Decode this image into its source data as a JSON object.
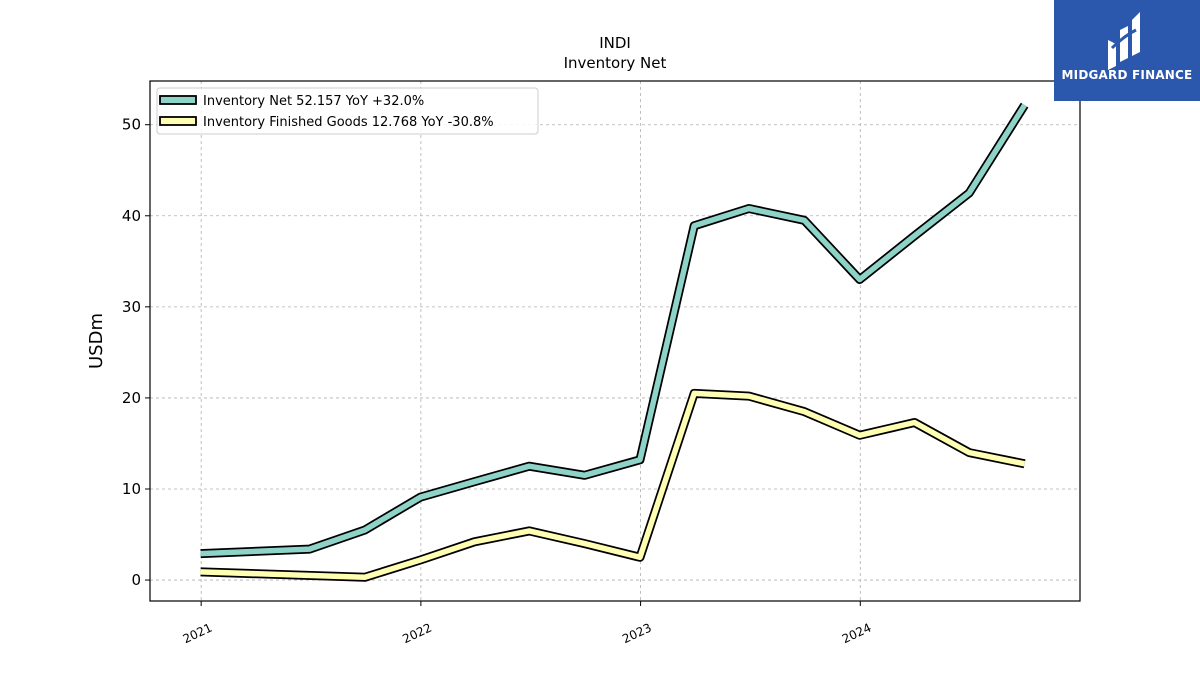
{
  "logo": {
    "text": "MIDGARD FINANCE",
    "background": "#2b57ad"
  },
  "chart_data": {
    "type": "line",
    "title": "INDI",
    "subtitle": "Inventory Net",
    "xlabel": "",
    "ylabel": "USDm",
    "xlim": [
      "2020-10-08",
      "2024-12-31"
    ],
    "ylim": [
      -2.3,
      54.8
    ],
    "x_ticks": [
      {
        "date": "2021-01-01",
        "label": "2021"
      },
      {
        "date": "2022-01-01",
        "label": "2022"
      },
      {
        "date": "2023-01-01",
        "label": "2023"
      },
      {
        "date": "2024-01-01",
        "label": "2024"
      }
    ],
    "y_ticks": [
      0,
      10,
      20,
      30,
      40,
      50
    ],
    "grid": true,
    "legend_position": "top-left",
    "series": [
      {
        "name": "Inventory Net  52.157 YoY +32.0%",
        "color": "#8dd3c7",
        "x": [
          "2020-12-31",
          "2021-06-30",
          "2021-09-30",
          "2021-12-31",
          "2022-03-31",
          "2022-06-30",
          "2022-09-30",
          "2022-12-31",
          "2023-03-31",
          "2023-06-30",
          "2023-09-30",
          "2023-12-31",
          "2024-03-31",
          "2024-06-30",
          "2024-09-30"
        ],
        "values": [
          2.9,
          3.4,
          5.5,
          9.1,
          10.8,
          12.5,
          11.5,
          13.2,
          38.9,
          40.8,
          39.5,
          33.0,
          37.8,
          42.5,
          52.157
        ]
      },
      {
        "name": "Inventory Finished Goods  12.768 YoY -30.8%",
        "color": "#ffffb3",
        "x": [
          "2020-12-31",
          "2021-09-30",
          "2021-12-31",
          "2022-03-31",
          "2022-06-30",
          "2022-09-30",
          "2022-12-31",
          "2023-03-31",
          "2023-06-30",
          "2023-09-30",
          "2023-12-31",
          "2024-03-31",
          "2024-06-30",
          "2024-09-30"
        ],
        "values": [
          0.9,
          0.3,
          2.2,
          4.2,
          5.4,
          4.0,
          2.5,
          20.5,
          20.2,
          18.5,
          15.9,
          17.3,
          14.0,
          12.768
        ]
      }
    ]
  }
}
